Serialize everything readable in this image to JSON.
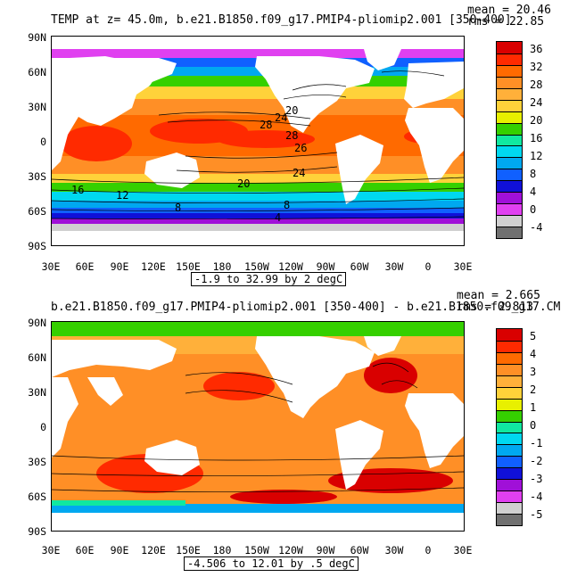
{
  "panel1": {
    "title": "TEMP at z=  45.0m, b.e21.B1850.f09_g17.PMIP4-pliomip2.001 [350-400]",
    "mean": "mean = 20.46",
    "rms": "rms = 22.85",
    "range": "-1.9 to 32.99 by 2 degC",
    "colorbar_labels": [
      "36",
      "32",
      "28",
      "24",
      "20",
      "16",
      "12",
      "8",
      "4",
      "0",
      "-4"
    ],
    "colorbar_colors": [
      "#d90000",
      "#ff2a00",
      "#ff6a00",
      "#ff8f26",
      "#ffb03a",
      "#ffd23a",
      "#e8f000",
      "#35d000",
      "#10e8a0",
      "#00d8f0",
      "#00a8f0",
      "#1060ff",
      "#1010d8",
      "#a010d8",
      "#e040f0",
      "#d0d0d0",
      "#707070"
    ],
    "contour_labels": [
      "20",
      "24",
      "28",
      "28",
      "26",
      "24",
      "20",
      "16",
      "12",
      "8",
      "8",
      "4"
    ]
  },
  "panel2": {
    "title": "b.e21.B1850.f09_g17.PMIP4-pliomip2.001 [350-400] - b.e21.B1850.f09_g17.CM",
    "mean": "mean = 2.665",
    "rms": "rms = 2.813",
    "range": "-4.506 to 12.01 by .5 degC",
    "colorbar_labels": [
      "5",
      "4",
      "3",
      "2",
      "1",
      "0",
      "-1",
      "-2",
      "-3",
      "-4",
      "-5"
    ],
    "colorbar_colors": [
      "#d90000",
      "#ff2a00",
      "#ff6a00",
      "#ff8f26",
      "#ffb03a",
      "#ffd23a",
      "#e8f000",
      "#35d000",
      "#10e8a0",
      "#00d8f0",
      "#00a8f0",
      "#1060ff",
      "#1010d8",
      "#a010d8",
      "#e040f0",
      "#d0d0d0",
      "#707070"
    ]
  },
  "lat_labels": [
    "90N",
    "60N",
    "30N",
    "0",
    "30S",
    "60S",
    "90S"
  ],
  "lon_labels": [
    "30E",
    "60E",
    "90E",
    "120E",
    "150E",
    "180",
    "150W",
    "120W",
    "90W",
    "60W",
    "30W",
    "0",
    "30E"
  ],
  "colors": {
    "land": "#ffffff",
    "ice": "#d0d0d0",
    "frame": "#000000"
  }
}
